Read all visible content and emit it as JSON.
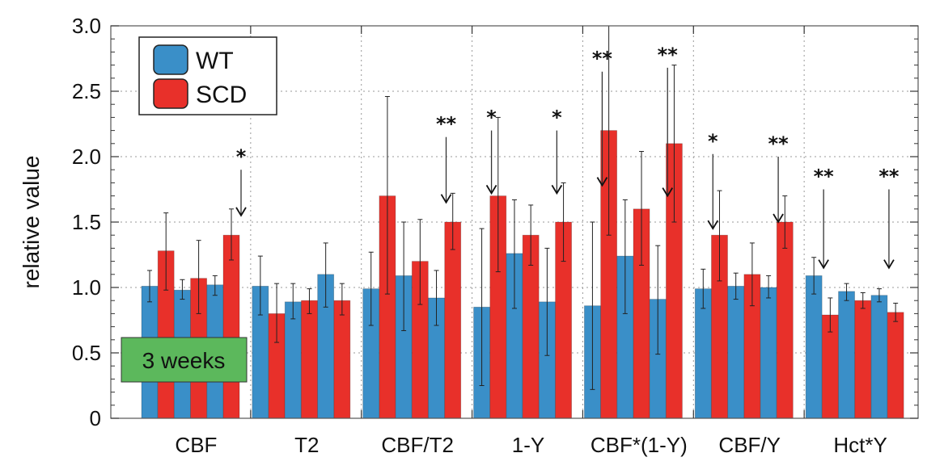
{
  "chart_data": {
    "type": "bar",
    "ylabel": "relative value",
    "xlabel": "",
    "ylim": [
      0,
      3.0
    ],
    "yticks": [
      "0",
      "0.5",
      "1.0",
      "1.5",
      "2.0",
      "2.5",
      "3.0"
    ],
    "grid": true,
    "legend": {
      "placement": "top-left",
      "entries": [
        "WT",
        "SCD"
      ]
    },
    "series_colors": {
      "WT": "#3a8fc8",
      "SCD": "#e8302a"
    },
    "annotation_badge": {
      "text": "3 weeks",
      "color": "#5cb85c"
    },
    "groups": [
      {
        "label": "CBF",
        "bars": [
          {
            "series": "WT",
            "value": 1.01,
            "err_low": 0.89,
            "err_high": 1.13
          },
          {
            "series": "SCD",
            "value": 1.28,
            "err_low": 0.98,
            "err_high": 1.57
          },
          {
            "series": "WT",
            "value": 0.98,
            "err_low": 0.91,
            "err_high": 1.06
          },
          {
            "series": "SCD",
            "value": 1.07,
            "err_low": 0.8,
            "err_high": 1.36
          },
          {
            "series": "WT",
            "value": 1.02,
            "err_low": 0.94,
            "err_high": 1.09
          },
          {
            "series": "SCD",
            "value": 1.4,
            "err_low": 1.21,
            "err_high": 1.6
          }
        ],
        "annotations": [
          {
            "stars": "*",
            "bar_index": 5,
            "from": 1.9,
            "to": 1.55
          }
        ]
      },
      {
        "label": "T2",
        "bars": [
          {
            "series": "WT",
            "value": 1.01,
            "err_low": 0.79,
            "err_high": 1.24
          },
          {
            "series": "SCD",
            "value": 0.8,
            "err_low": 0.58,
            "err_high": 1.03
          },
          {
            "series": "WT",
            "value": 0.89,
            "err_low": 0.76,
            "err_high": 1.03
          },
          {
            "series": "SCD",
            "value": 0.9,
            "err_low": 0.8,
            "err_high": 0.99
          },
          {
            "series": "WT",
            "value": 1.1,
            "err_low": 0.85,
            "err_high": 1.34
          },
          {
            "series": "SCD",
            "value": 0.9,
            "err_low": 0.79,
            "err_high": 1.03
          }
        ],
        "annotations": []
      },
      {
        "label": "CBF/T2",
        "bars": [
          {
            "series": "WT",
            "value": 0.99,
            "err_low": 0.71,
            "err_high": 1.27
          },
          {
            "series": "SCD",
            "value": 1.7,
            "err_low": 0.95,
            "err_high": 2.46
          },
          {
            "series": "WT",
            "value": 1.09,
            "err_low": 0.67,
            "err_high": 1.5
          },
          {
            "series": "SCD",
            "value": 1.2,
            "err_low": 0.87,
            "err_high": 1.52
          },
          {
            "series": "WT",
            "value": 0.92,
            "err_low": 0.71,
            "err_high": 1.13
          },
          {
            "series": "SCD",
            "value": 1.5,
            "err_low": 1.29,
            "err_high": 1.72
          }
        ],
        "annotations": [
          {
            "stars": "**",
            "bar_index": 4,
            "from": 2.15,
            "to": 1.65
          }
        ]
      },
      {
        "label": "1-Y",
        "bars": [
          {
            "series": "WT",
            "value": 0.85,
            "err_low": 0.25,
            "err_high": 1.45
          },
          {
            "series": "SCD",
            "value": 1.7,
            "err_low": 1.12,
            "err_high": 2.3
          },
          {
            "series": "WT",
            "value": 1.26,
            "err_low": 0.84,
            "err_high": 1.67
          },
          {
            "series": "SCD",
            "value": 1.4,
            "err_low": 1.17,
            "err_high": 1.63
          },
          {
            "series": "WT",
            "value": 0.89,
            "err_low": 0.48,
            "err_high": 1.3
          },
          {
            "series": "SCD",
            "value": 1.5,
            "err_low": 1.2,
            "err_high": 1.8
          }
        ],
        "annotations": [
          {
            "stars": "*",
            "bar_index": 0,
            "from": 2.2,
            "to": 1.72
          },
          {
            "stars": "*",
            "bar_index": 4,
            "from": 2.2,
            "to": 1.72
          }
        ]
      },
      {
        "label": "CBF*(1-Y)",
        "bars": [
          {
            "series": "WT",
            "value": 0.86,
            "err_low": 0.22,
            "err_high": 1.5
          },
          {
            "series": "SCD",
            "value": 2.2,
            "err_low": 1.4,
            "err_high": 3.0
          },
          {
            "series": "WT",
            "value": 1.24,
            "err_low": 0.8,
            "err_high": 1.67
          },
          {
            "series": "SCD",
            "value": 1.6,
            "err_low": 1.17,
            "err_high": 2.04
          },
          {
            "series": "WT",
            "value": 0.91,
            "err_low": 0.49,
            "err_high": 1.32
          },
          {
            "series": "SCD",
            "value": 2.1,
            "err_low": 1.5,
            "err_high": 2.7
          }
        ],
        "annotations": [
          {
            "stars": "**",
            "bar_index": 0,
            "from": 2.65,
            "to": 1.78
          },
          {
            "stars": "**",
            "bar_index": 4,
            "from": 2.68,
            "to": 1.7
          }
        ]
      },
      {
        "label": "CBF/Y",
        "bars": [
          {
            "series": "WT",
            "value": 0.99,
            "err_low": 0.84,
            "err_high": 1.14
          },
          {
            "series": "SCD",
            "value": 1.4,
            "err_low": 1.05,
            "err_high": 1.74
          },
          {
            "series": "WT",
            "value": 1.01,
            "err_low": 0.91,
            "err_high": 1.11
          },
          {
            "series": "SCD",
            "value": 1.1,
            "err_low": 0.86,
            "err_high": 1.34
          },
          {
            "series": "WT",
            "value": 1.0,
            "err_low": 0.92,
            "err_high": 1.09
          },
          {
            "series": "SCD",
            "value": 1.5,
            "err_low": 1.3,
            "err_high": 1.7
          }
        ],
        "annotations": [
          {
            "stars": "*",
            "bar_index": 0,
            "from": 2.02,
            "to": 1.45
          },
          {
            "stars": "**",
            "bar_index": 4,
            "from": 2.0,
            "to": 1.5
          }
        ]
      },
      {
        "label": "Hct*Y",
        "bars": [
          {
            "series": "WT",
            "value": 1.09,
            "err_low": 0.95,
            "err_high": 1.23
          },
          {
            "series": "SCD",
            "value": 0.79,
            "err_low": 0.66,
            "err_high": 0.92
          },
          {
            "series": "WT",
            "value": 0.97,
            "err_low": 0.9,
            "err_high": 1.03
          },
          {
            "series": "SCD",
            "value": 0.9,
            "err_low": 0.84,
            "err_high": 0.96
          },
          {
            "series": "WT",
            "value": 0.94,
            "err_low": 0.89,
            "err_high": 0.99
          },
          {
            "series": "SCD",
            "value": 0.81,
            "err_low": 0.74,
            "err_high": 0.88
          }
        ],
        "annotations": [
          {
            "stars": "**",
            "bar_index": 0,
            "from": 1.75,
            "to": 1.15
          },
          {
            "stars": "**",
            "bar_index": 4,
            "from": 1.75,
            "to": 1.15
          }
        ]
      }
    ]
  }
}
